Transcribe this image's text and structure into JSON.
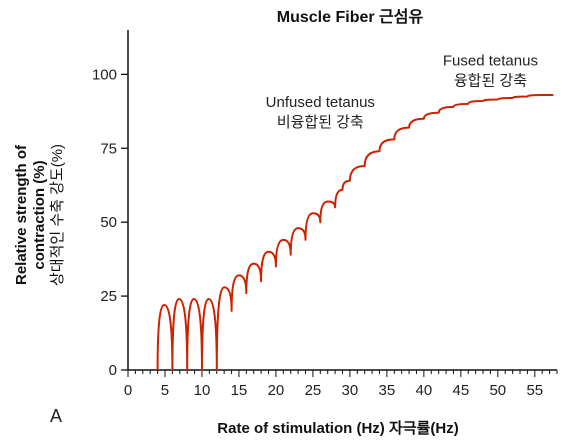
{
  "chart_data": {
    "type": "line",
    "title": "Muscle Fiber 근섬유",
    "panel_label": "A",
    "xlabel": "Rate of stimulation (Hz) 자극률(Hz)",
    "ylabel_lines": [
      "Relative strength of",
      "contraction (%)",
      "상대적인 수축 강도(%)"
    ],
    "xlim": [
      0,
      58
    ],
    "ylim": [
      0,
      115
    ],
    "x_ticks": [
      0,
      5,
      10,
      15,
      20,
      25,
      30,
      35,
      40,
      45,
      50,
      55
    ],
    "y_ticks": [
      0,
      25,
      50,
      75,
      100
    ],
    "line_color": "#cc2200",
    "annotations": [
      {
        "lines": [
          "Unfused tetanus",
          "비융합된 강축"
        ],
        "x": 26,
        "y": 89
      },
      {
        "lines": [
          "Fused tetanus",
          "융합된 강축"
        ],
        "x": 49,
        "y": 103
      }
    ],
    "series": [
      {
        "x": [
          4,
          4.9,
          6,
          6.9,
          8,
          8.9,
          10,
          10.9,
          12,
          13,
          14,
          15,
          16,
          17,
          18,
          19,
          20,
          21,
          22,
          23,
          24,
          25,
          26,
          27,
          28,
          29,
          30,
          32,
          34,
          36,
          38,
          40,
          42,
          44,
          46,
          48,
          50,
          52,
          54,
          56,
          57.5
        ],
        "y": [
          0,
          22,
          0,
          24,
          0,
          24,
          0,
          24,
          0,
          28,
          20,
          32,
          26,
          36,
          30,
          40,
          35,
          44,
          39,
          48,
          44,
          53,
          50,
          57,
          55,
          61,
          64,
          69,
          74,
          78,
          82,
          85,
          87,
          89,
          90,
          91,
          91.5,
          92,
          92.5,
          93,
          93
        ]
      }
    ]
  }
}
